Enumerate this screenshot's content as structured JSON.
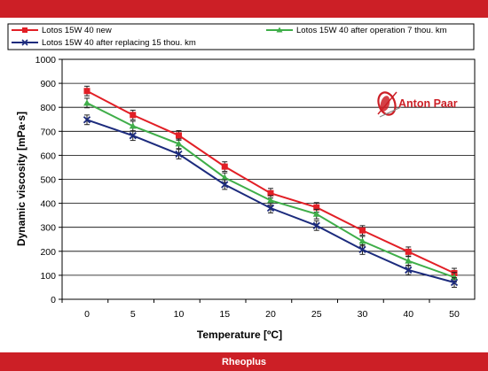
{
  "footer": {
    "label": "Rheoplus"
  },
  "logo": {
    "text": "Anton Paar",
    "color": "#cc1f26"
  },
  "colors": {
    "frame": "#cc1f26",
    "plot_bg": "#ffffff",
    "grid": "#000000"
  },
  "chart_data": {
    "type": "line",
    "xlabel": "Temperature [ºC]",
    "ylabel": "Dynamic viscosity [mPa·s]",
    "categories": [
      "0",
      "5",
      "10",
      "15",
      "20",
      "25",
      "30",
      "40",
      "50"
    ],
    "ylim": [
      0,
      1000
    ],
    "yticks": [
      0,
      100,
      200,
      300,
      400,
      500,
      600,
      700,
      800,
      900,
      1000
    ],
    "grid": true,
    "legend_position": "top",
    "error_bars": 20,
    "series": [
      {
        "name": "Lotos 15W 40  new",
        "color": "#e21f26",
        "marker": "square",
        "values": [
          868,
          768,
          683,
          553,
          442,
          383,
          287,
          198,
          109
        ]
      },
      {
        "name": "Lotos 15W 40  after operation  7 thou. km",
        "color": "#3fae49",
        "marker": "triangle",
        "values": [
          818,
          722,
          648,
          507,
          412,
          355,
          242,
          160,
          92
        ]
      },
      {
        "name": "Lotos 15W 40  after replacing 15 thou. km",
        "color": "#1c2b7d",
        "marker": "cross",
        "values": [
          748,
          682,
          605,
          478,
          380,
          307,
          207,
          122,
          70
        ]
      }
    ]
  }
}
